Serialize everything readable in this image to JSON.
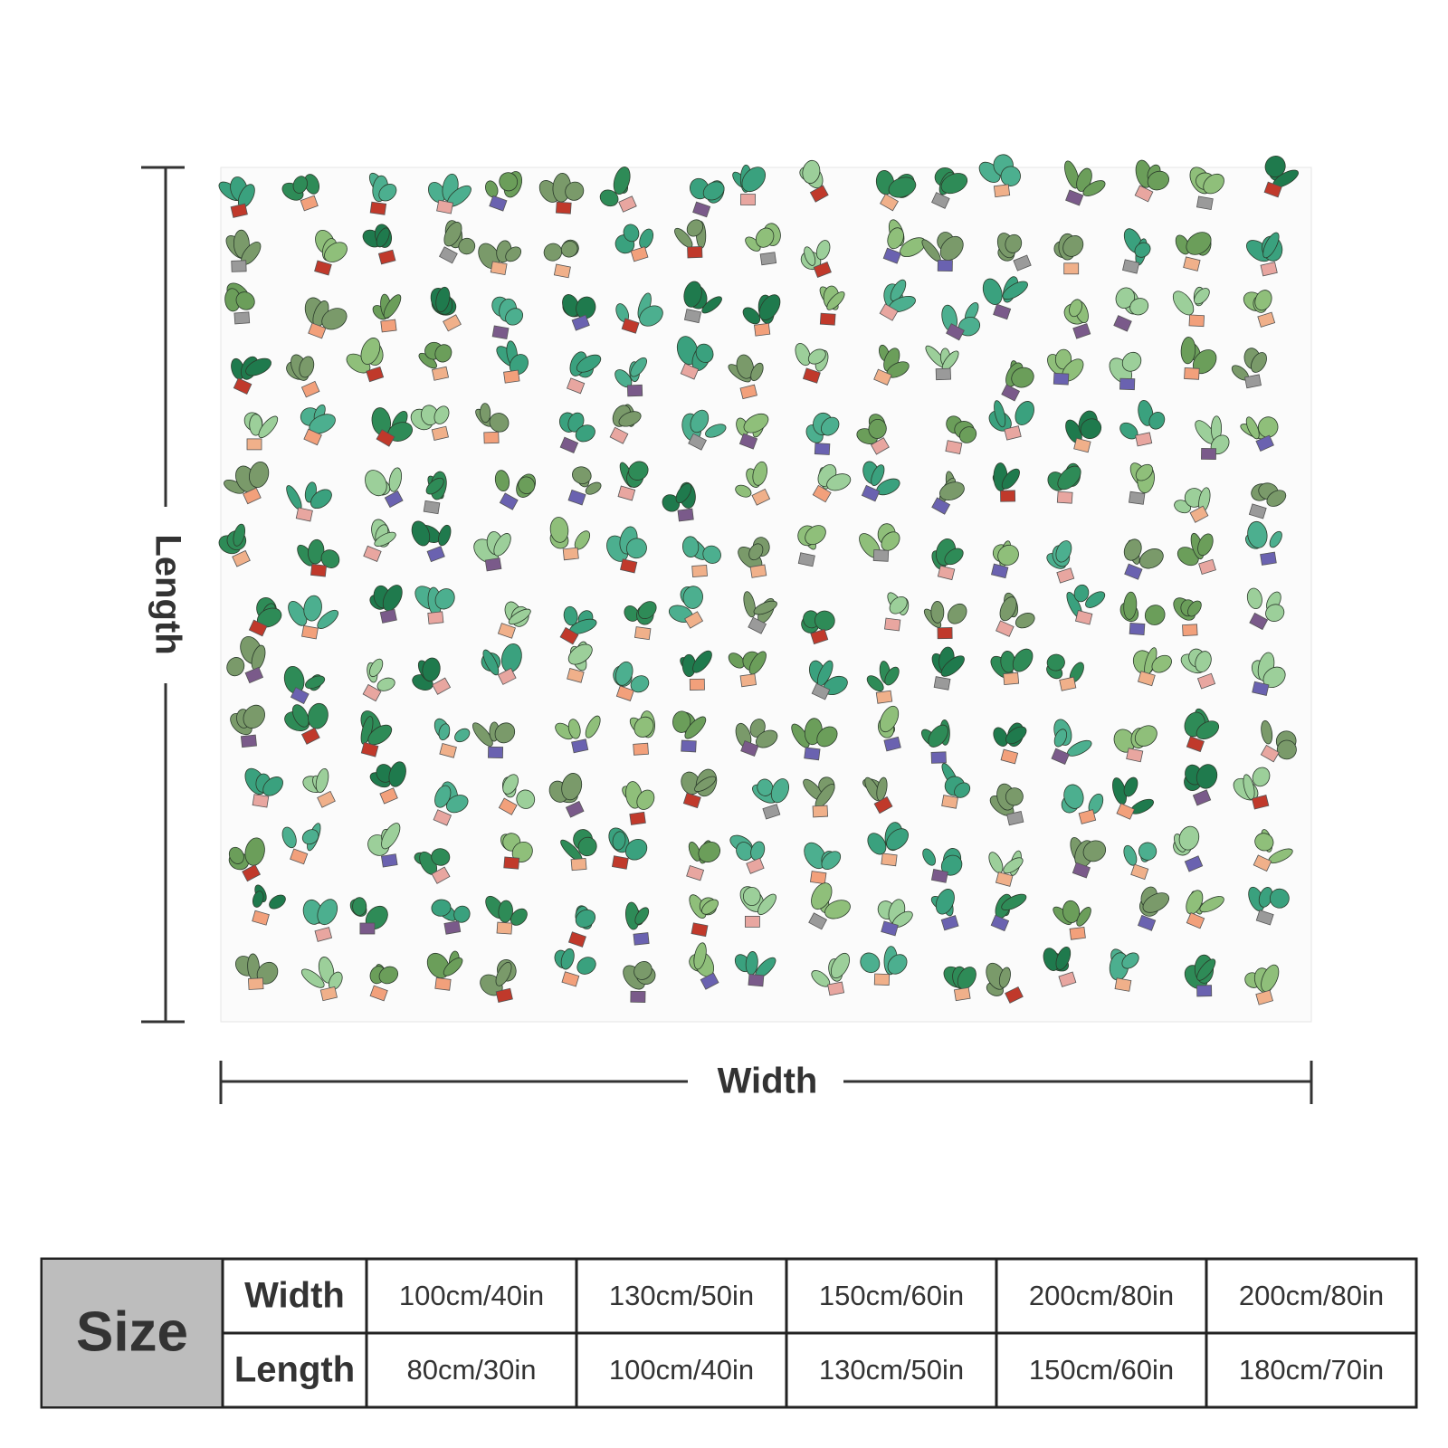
{
  "dimension_labels": {
    "length": "Length",
    "width": "Width"
  },
  "size_table": {
    "header": "Size",
    "rows": [
      {
        "label": "Width",
        "values": [
          "100cm/40in",
          "130cm/50in",
          "150cm/60in",
          "200cm/80in",
          "200cm/80in"
        ]
      },
      {
        "label": "Length",
        "values": [
          "80cm/30in",
          "100cm/40in",
          "130cm/50in",
          "150cm/60in",
          "180cm/70in"
        ]
      }
    ]
  }
}
